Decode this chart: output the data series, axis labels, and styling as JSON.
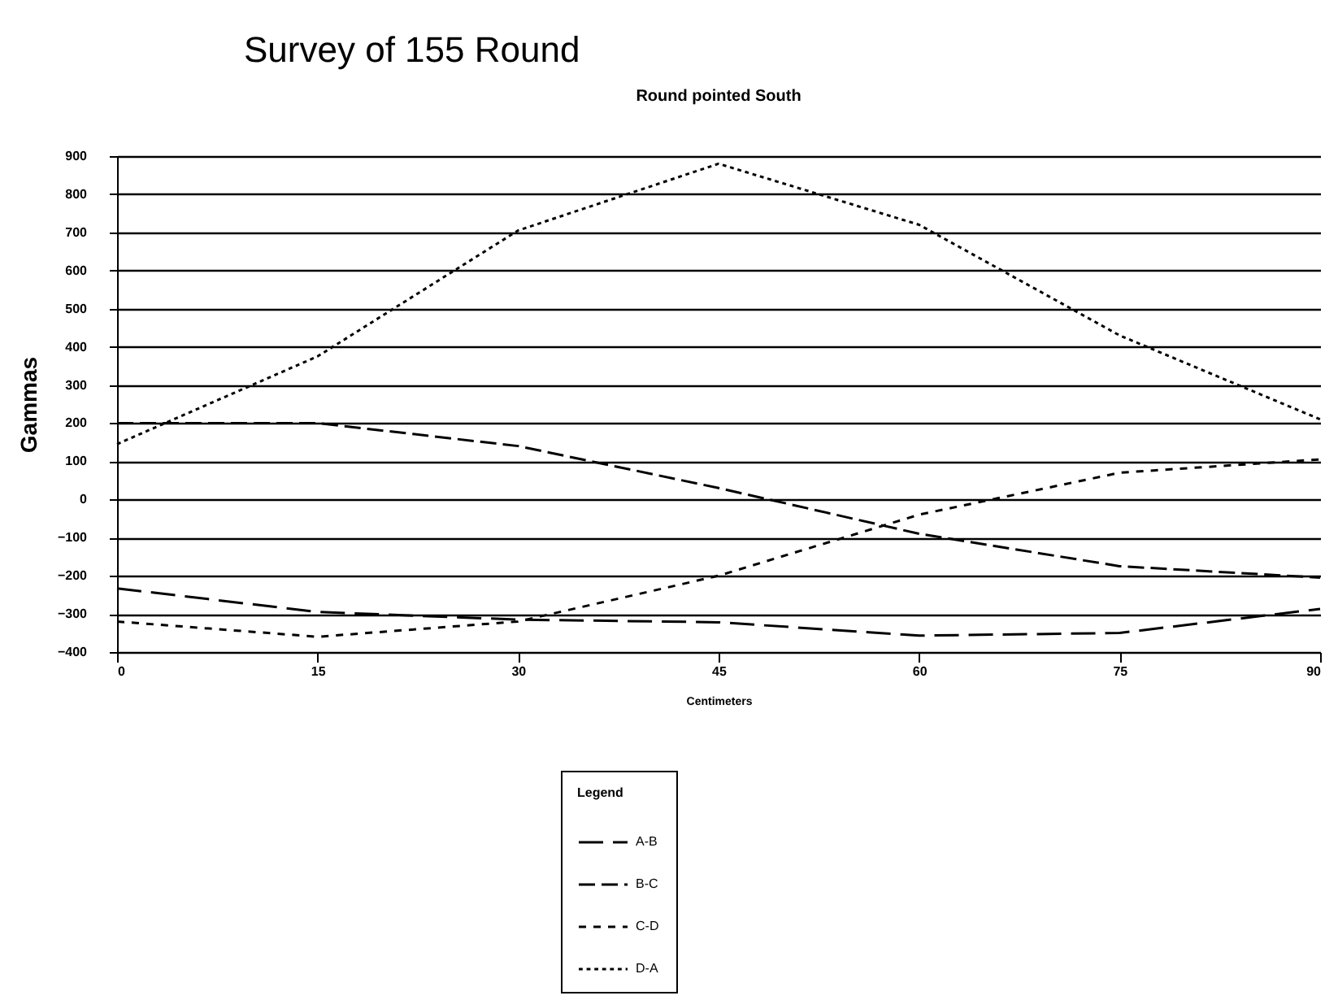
{
  "chart_data": {
    "type": "line",
    "title": "Survey of 155 Round",
    "subtitle": "Round pointed South",
    "xlabel": "Centimeters",
    "ylabel": "Gammas",
    "legend_title": "Legend",
    "x": [
      0,
      15,
      30,
      45,
      60,
      75,
      90
    ],
    "xlim": [
      0,
      90
    ],
    "xticks": [
      0,
      15,
      30,
      45,
      60,
      75,
      90
    ],
    "ylim": [
      -400,
      900
    ],
    "yticks": [
      -400,
      -300,
      -200,
      -100,
      0,
      100,
      200,
      300,
      400,
      500,
      600,
      700,
      800,
      900
    ],
    "grid": "y",
    "legend": "bottom",
    "marker": "none",
    "series": [
      {
        "name": "A-B",
        "color": "#000000",
        "line_style": "dashed",
        "values": [
          -233,
          -295,
          -315,
          -322,
          -357,
          -350,
          -287
        ]
      },
      {
        "name": "B-C",
        "color": "#000000",
        "line_style": "dashed",
        "values": [
          200,
          200,
          140,
          30,
          -90,
          -175,
          -205
        ]
      },
      {
        "name": "C-D",
        "color": "#000000",
        "line_style": "dotted",
        "values": [
          -320,
          -360,
          -320,
          -200,
          -40,
          70,
          105
        ]
      },
      {
        "name": "D-A",
        "color": "#000000",
        "line_style": "dotted",
        "values": [
          145,
          375,
          705,
          880,
          720,
          430,
          210
        ]
      }
    ]
  }
}
